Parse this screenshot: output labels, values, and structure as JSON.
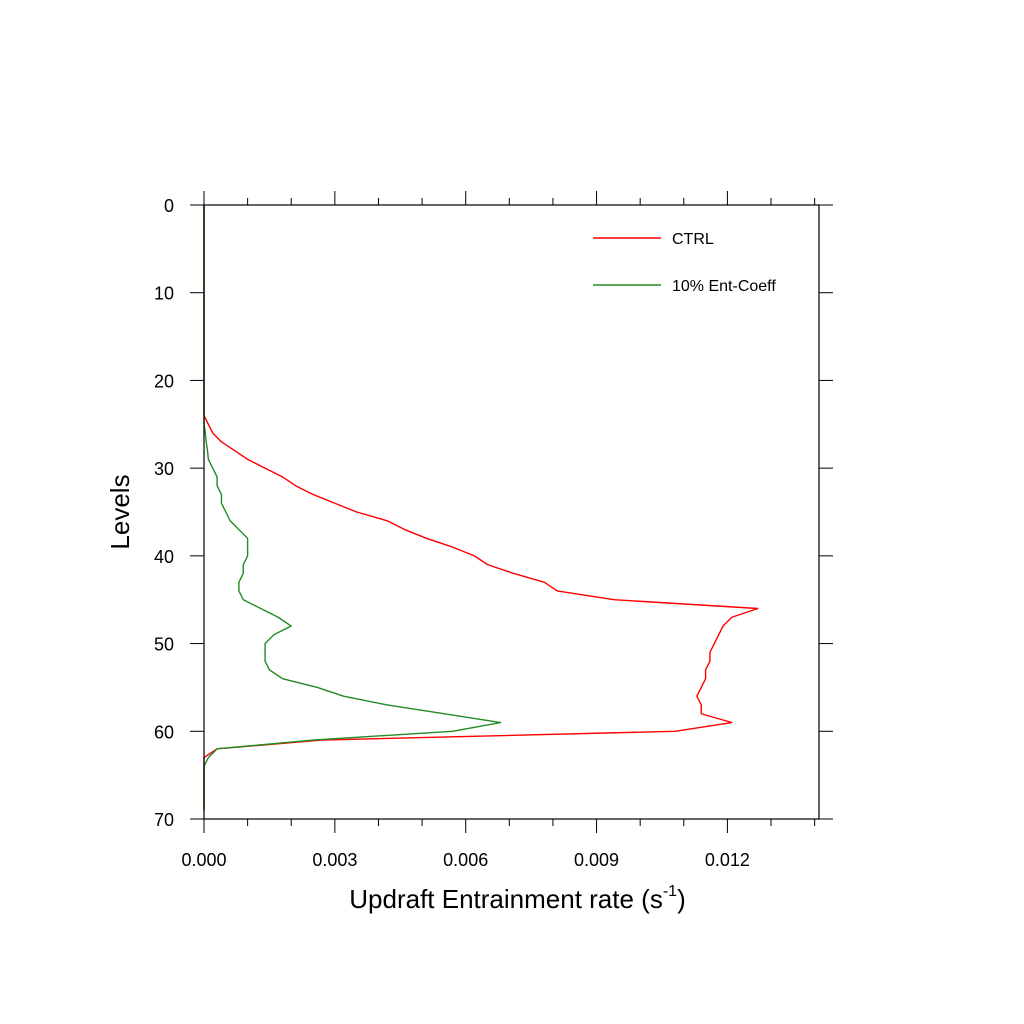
{
  "chart_data": {
    "type": "line",
    "orientation": "profile (x = value, y = level, y axis reversed)",
    "xlabel": "Updraft Entrainment rate (s",
    "xlabel_sup": "-1",
    "xlabel_close": ")",
    "ylabel": "Levels",
    "xlim": [
      0.0,
      0.0141
    ],
    "ylim": [
      0,
      70
    ],
    "y_reversed": true,
    "xticks": [
      0.0,
      0.003,
      0.006,
      0.009,
      0.012
    ],
    "xtick_labels": [
      "0.000",
      "0.003",
      "0.006",
      "0.009",
      "0.012"
    ],
    "yticks": [
      0,
      10,
      20,
      30,
      40,
      50,
      60,
      70
    ],
    "ytick_labels": [
      "0",
      "10",
      "20",
      "30",
      "40",
      "50",
      "60",
      "70"
    ],
    "grid": false,
    "legend_position": "top-right",
    "series": [
      {
        "name": "CTRL",
        "color": "#ff0000",
        "x": [
          0,
          0,
          0,
          0,
          0,
          0,
          0,
          0,
          0,
          0,
          0,
          0,
          0,
          0,
          0,
          0,
          0,
          0,
          0,
          0,
          0,
          0,
          0,
          0,
          0,
          0.0001,
          0.0002,
          0.0004,
          0.0007,
          0.001,
          0.0014,
          0.0018,
          0.0021,
          0.0025,
          0.003,
          0.0035,
          0.0042,
          0.0046,
          0.0051,
          0.0057,
          0.0062,
          0.0065,
          0.0071,
          0.0078,
          0.0081,
          0.0094,
          0.0127,
          0.0121,
          0.0119,
          0.0118,
          0.0117,
          0.0116,
          0.0116,
          0.0115,
          0.0115,
          0.0114,
          0.0113,
          0.0114,
          0.0114,
          0.0121,
          0.0108,
          0.0027,
          0.0003,
          0,
          0,
          0,
          0,
          0,
          0,
          0
        ],
        "y": [
          0,
          1,
          2,
          3,
          4,
          5,
          6,
          7,
          8,
          9,
          10,
          11,
          12,
          13,
          14,
          15,
          16,
          17,
          18,
          19,
          20,
          21,
          22,
          23,
          24,
          25,
          26,
          27,
          28,
          29,
          30,
          31,
          32,
          33,
          34,
          35,
          36,
          37,
          38,
          39,
          40,
          41,
          42,
          43,
          44,
          45,
          46,
          47,
          48,
          49,
          50,
          51,
          52,
          53,
          54,
          55,
          56,
          57,
          58,
          59,
          60,
          61,
          62,
          63,
          64,
          65,
          66,
          67,
          68,
          69
        ]
      },
      {
        "name": "10% Ent-Coeff",
        "color": "#228b22",
        "x": [
          0,
          0,
          0,
          0,
          0,
          0,
          0,
          0,
          0,
          0,
          0,
          0,
          0,
          0,
          0,
          0,
          0,
          0,
          0,
          0,
          0,
          0,
          0,
          0,
          0,
          0,
          3e-05,
          5e-05,
          8e-05,
          0.0001,
          0.0002,
          0.0003,
          0.0003,
          0.0004,
          0.0004,
          0.0005,
          0.0006,
          0.0008,
          0.001,
          0.001,
          0.001,
          0.0009,
          0.0009,
          0.0008,
          0.0008,
          0.0009,
          0.0013,
          0.0017,
          0.002,
          0.0016,
          0.0014,
          0.0014,
          0.0014,
          0.0015,
          0.0018,
          0.0026,
          0.0032,
          0.0042,
          0.0055,
          0.0068,
          0.0057,
          0.0025,
          0.0003,
          0.0001,
          0,
          0,
          0,
          0,
          0,
          0
        ],
        "y": [
          0,
          1,
          2,
          3,
          4,
          5,
          6,
          7,
          8,
          9,
          10,
          11,
          12,
          13,
          14,
          15,
          16,
          17,
          18,
          19,
          20,
          21,
          22,
          23,
          24,
          25,
          26,
          27,
          28,
          29,
          30,
          31,
          32,
          33,
          34,
          35,
          36,
          37,
          38,
          39,
          40,
          41,
          42,
          43,
          44,
          45,
          46,
          47,
          48,
          49,
          50,
          51,
          52,
          53,
          54,
          55,
          56,
          57,
          58,
          59,
          60,
          61,
          62,
          63,
          64,
          65,
          66,
          67,
          68,
          69
        ]
      }
    ]
  }
}
